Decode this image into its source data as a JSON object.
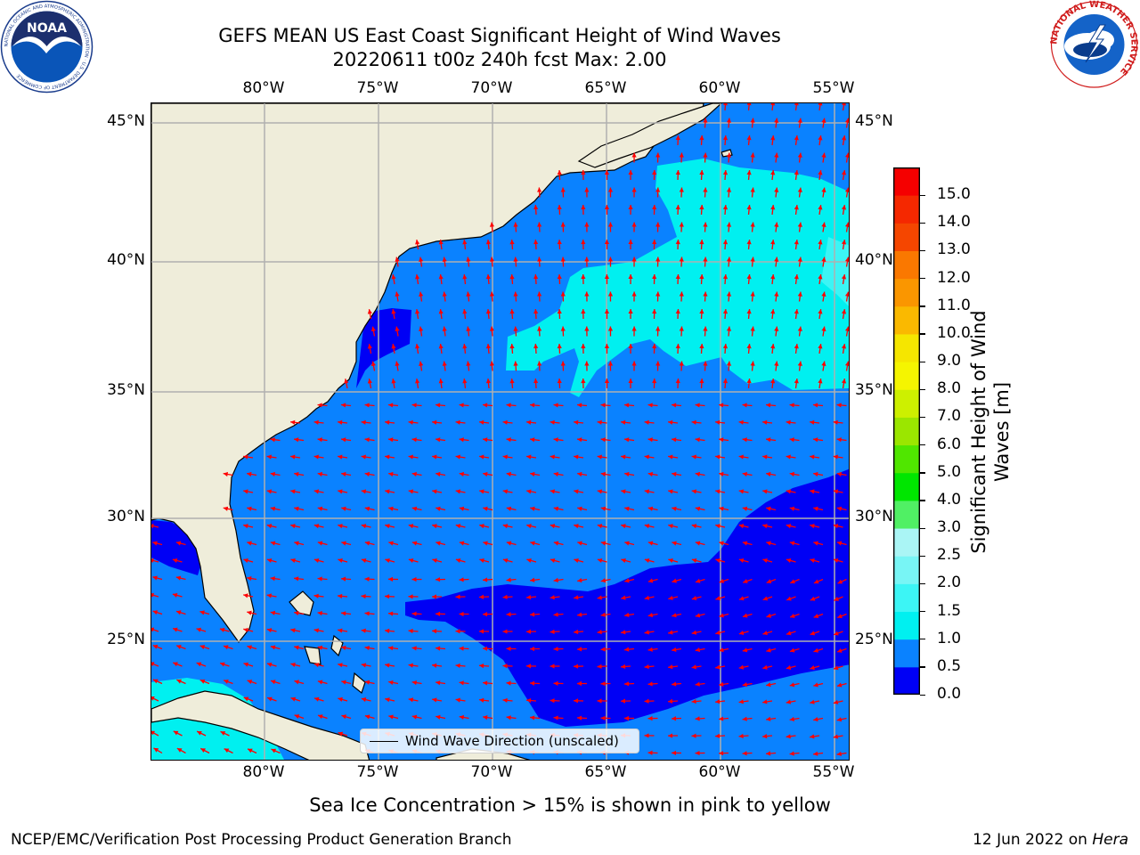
{
  "title": {
    "line1": "GEFS MEAN US East Coast Significant Height of Wind Waves",
    "line2": "20220611 t00z 240h fcst   Max: 2.00"
  },
  "map": {
    "lon_ticks": [
      "80°W",
      "75°W",
      "70°W",
      "65°W",
      "60°W",
      "55°W"
    ],
    "lat_ticks": [
      "45°N",
      "40°N",
      "35°N",
      "30°N",
      "25°N"
    ],
    "extent": {
      "lon": [
        -85,
        -54.3
      ],
      "lat": [
        20.5,
        46
      ]
    },
    "gridlines": true,
    "land_color": "#efedda",
    "legend": {
      "label": "Wind Wave Direction (unscaled)",
      "position": "bottom-center"
    }
  },
  "colorbar": {
    "label_line1": "Significant Height of Wind",
    "label_line2": "Waves [m]",
    "ticks": [
      "0.0",
      "0.5",
      "1.0",
      "1.5",
      "2.0",
      "2.5",
      "3.0",
      "4.0",
      "5.0",
      "6.0",
      "7.0",
      "8.0",
      "9.0",
      "10.0",
      "11.0",
      "12.0",
      "13.0",
      "14.0",
      "15.0"
    ],
    "colors": [
      "#0000f5",
      "#0a82ff",
      "#00f0f0",
      "#3cf5f5",
      "#78f5f5",
      "#aaf5f5",
      "#50f064",
      "#00e600",
      "#50e600",
      "#9be600",
      "#cdf000",
      "#f5f500",
      "#f5e600",
      "#fab900",
      "#fa9600",
      "#fa7800",
      "#f54600",
      "#f52800",
      "#f50000"
    ]
  },
  "logos": {
    "noaa": {
      "center_text": "NOAA",
      "ring_text": "NATIONAL OCEANIC AND ATMOSPHERIC ADMINISTRATION · U.S. DEPARTMENT OF COMMERCE"
    },
    "nws": {
      "ring_text": "NATIONAL WEATHER SERVICE"
    }
  },
  "subtitle": "Sea Ice Concentration > 15% is shown in pink to yellow",
  "footer": {
    "left": "NCEP/EMC/Verification Post Processing Product Generation Branch",
    "right_date": "12 Jun 2022 on ",
    "right_machine": "Hera"
  },
  "chart_data": {
    "type": "heatmap",
    "title": "GEFS MEAN US East Coast Significant Height of Wind Waves",
    "zlabel": "Significant Height of Wind Waves [m]",
    "zlim": [
      0,
      15
    ],
    "max": 2.0,
    "forecast": "20220611 t00z 240h fcst",
    "overlay": "Wind Wave Direction (unscaled)"
  }
}
